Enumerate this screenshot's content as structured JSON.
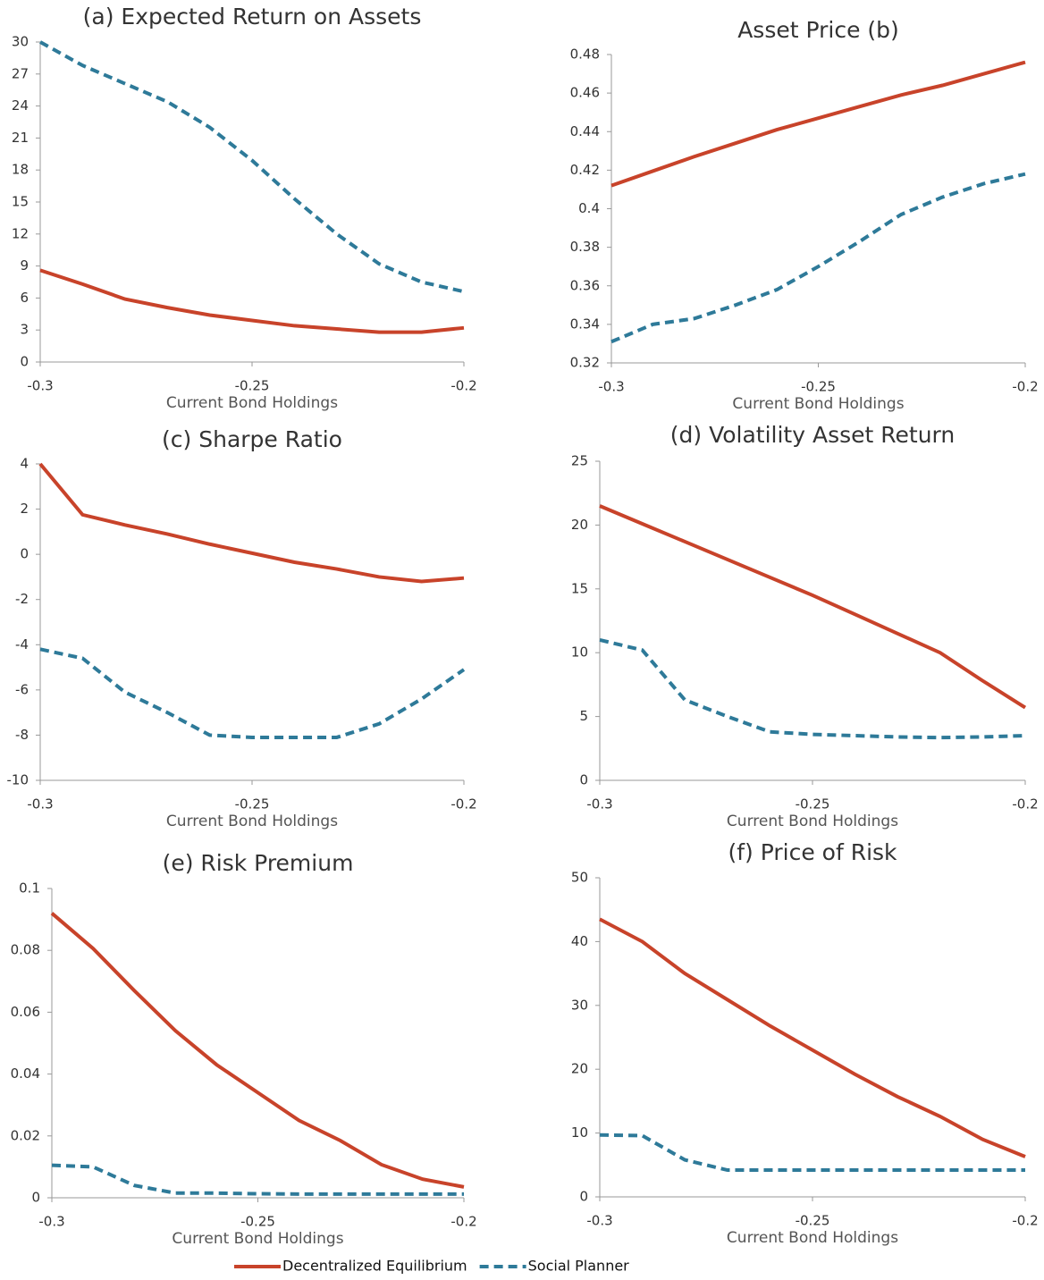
{
  "chart_data": [
    {
      "type": "line",
      "title": "(a) Expected Return on Assets",
      "x_label": "Current Bond Holdings",
      "x": [
        -0.3,
        -0.29,
        -0.28,
        -0.27,
        -0.26,
        -0.25,
        -0.24,
        -0.23,
        -0.22,
        -0.21,
        -0.2
      ],
      "xlim": [
        -0.3,
        -0.2
      ],
      "xticks": [
        -0.3,
        -0.25,
        -0.2
      ],
      "ylim": [
        0,
        30
      ],
      "yticks": [
        0,
        3,
        6,
        9,
        12,
        15,
        18,
        21,
        24,
        27,
        30
      ],
      "series": [
        {
          "name": "Decentralized Equilibrium",
          "color": "#c8432a",
          "linestyle": "solid",
          "values": [
            8.6,
            7.3,
            5.9,
            5.1,
            4.4,
            3.9,
            3.4,
            3.1,
            2.8,
            2.8,
            3.2
          ]
        },
        {
          "name": "Social Planner",
          "color": "#2e7a99",
          "linestyle": "dashed",
          "values": [
            30,
            27.8,
            26.1,
            24.4,
            22.0,
            18.9,
            15.3,
            12.0,
            9.2,
            7.5,
            6.6
          ]
        }
      ]
    },
    {
      "type": "line",
      "title": "Asset Price (b)",
      "x_label": "Current Bond Holdings",
      "x": [
        -0.3,
        -0.29,
        -0.28,
        -0.27,
        -0.26,
        -0.25,
        -0.24,
        -0.23,
        -0.22,
        -0.21,
        -0.2
      ],
      "xlim": [
        -0.3,
        -0.2
      ],
      "xticks": [
        -0.3,
        -0.25,
        -0.2
      ],
      "ylim": [
        0.32,
        0.48
      ],
      "yticks": [
        0.32,
        0.34,
        0.36,
        0.38,
        0.4,
        0.42,
        0.44,
        0.46,
        0.48
      ],
      "series": [
        {
          "name": "Decentralized Equilibrium",
          "color": "#c8432a",
          "linestyle": "solid",
          "values": [
            0.412,
            0.4195,
            0.427,
            0.434,
            0.441,
            0.447,
            0.453,
            0.459,
            0.464,
            0.47,
            0.476
          ]
        },
        {
          "name": "Social Planner",
          "color": "#2e7a99",
          "linestyle": "dashed",
          "values": [
            0.331,
            0.34,
            0.343,
            0.35,
            0.358,
            0.37,
            0.383,
            0.397,
            0.406,
            0.413,
            0.418
          ]
        }
      ]
    },
    {
      "type": "line",
      "title": "(c) Sharpe Ratio",
      "x_label": "Current Bond Holdings",
      "x": [
        -0.3,
        -0.29,
        -0.28,
        -0.27,
        -0.26,
        -0.25,
        -0.24,
        -0.23,
        -0.22,
        -0.21,
        -0.2
      ],
      "xlim": [
        -0.3,
        -0.2
      ],
      "xticks": [
        -0.3,
        -0.25,
        -0.2
      ],
      "ylim": [
        -10,
        4
      ],
      "yticks": [
        -10,
        -8,
        -6,
        -4,
        -2,
        0,
        2,
        4
      ],
      "series": [
        {
          "name": "Decentralized Equilibrium",
          "color": "#c8432a",
          "linestyle": "solid",
          "values": [
            4.0,
            1.75,
            1.3,
            0.9,
            0.45,
            0.05,
            -0.35,
            -0.65,
            -1.0,
            -1.2,
            -1.05
          ]
        },
        {
          "name": "Social Planner",
          "color": "#2e7a99",
          "linestyle": "dashed",
          "values": [
            -4.2,
            -4.6,
            -6.1,
            -7.0,
            -8.0,
            -8.1,
            -8.1,
            -8.1,
            -7.5,
            -6.4,
            -5.1
          ]
        }
      ]
    },
    {
      "type": "line",
      "title": "(d) Volatility Asset Return",
      "x_label": "Current Bond Holdings",
      "x": [
        -0.3,
        -0.29,
        -0.28,
        -0.27,
        -0.26,
        -0.25,
        -0.24,
        -0.23,
        -0.22,
        -0.21,
        -0.2
      ],
      "xlim": [
        -0.3,
        -0.2
      ],
      "xticks": [
        -0.3,
        -0.25,
        -0.2
      ],
      "ylim": [
        0,
        25
      ],
      "yticks": [
        0,
        5,
        10,
        15,
        20,
        25
      ],
      "series": [
        {
          "name": "Decentralized Equilibrium",
          "color": "#c8432a",
          "linestyle": "solid",
          "values": [
            21.5,
            20.1,
            18.7,
            17.3,
            15.9,
            14.5,
            13.0,
            11.5,
            10.0,
            7.8,
            5.7
          ]
        },
        {
          "name": "Social Planner",
          "color": "#2e7a99",
          "linestyle": "dashed",
          "values": [
            11.0,
            10.2,
            6.3,
            5.0,
            3.8,
            3.6,
            3.5,
            3.4,
            3.35,
            3.4,
            3.5
          ]
        }
      ]
    },
    {
      "type": "line",
      "title": "(e) Risk Premium",
      "x_label": "Current Bond Holdings",
      "x": [
        -0.3,
        -0.29,
        -0.28,
        -0.27,
        -0.26,
        -0.25,
        -0.24,
        -0.23,
        -0.22,
        -0.21,
        -0.2
      ],
      "xlim": [
        -0.3,
        -0.2
      ],
      "xticks": [
        -0.3,
        -0.25,
        -0.2
      ],
      "ylim": [
        0,
        0.1
      ],
      "yticks": [
        0,
        0.02,
        0.04,
        0.06,
        0.08,
        0.1
      ],
      "series": [
        {
          "name": "Decentralized Equilibrium",
          "color": "#c8432a",
          "linestyle": "solid",
          "values": [
            0.092,
            0.0806,
            0.067,
            0.054,
            0.043,
            0.034,
            0.025,
            0.0185,
            0.0107,
            0.006,
            0.0035
          ]
        },
        {
          "name": "Social Planner",
          "color": "#2e7a99",
          "linestyle": "dashed",
          "values": [
            0.0105,
            0.01,
            0.004,
            0.0015,
            0.0015,
            0.0013,
            0.0012,
            0.0012,
            0.0012,
            0.0012,
            0.0012
          ]
        }
      ]
    },
    {
      "type": "line",
      "title": "(f) Price of Risk",
      "x_label": "Current Bond Holdings",
      "x": [
        -0.3,
        -0.29,
        -0.28,
        -0.27,
        -0.26,
        -0.25,
        -0.24,
        -0.23,
        -0.22,
        -0.21,
        -0.2
      ],
      "xlim": [
        -0.3,
        -0.2
      ],
      "xticks": [
        -0.3,
        -0.25,
        -0.2
      ],
      "ylim": [
        0,
        50
      ],
      "yticks": [
        0,
        10,
        20,
        30,
        40,
        50
      ],
      "series": [
        {
          "name": "Decentralized Equilibrium",
          "color": "#c8432a",
          "linestyle": "solid",
          "values": [
            43.5,
            40.0,
            35.0,
            30.9,
            26.8,
            23.0,
            19.2,
            15.7,
            12.6,
            9.0,
            6.3
          ]
        },
        {
          "name": "Social Planner",
          "color": "#2e7a99",
          "linestyle": "dashed",
          "values": [
            9.7,
            9.6,
            5.8,
            4.2,
            4.2,
            4.2,
            4.2,
            4.2,
            4.2,
            4.2,
            4.2
          ]
        }
      ]
    }
  ]
}
